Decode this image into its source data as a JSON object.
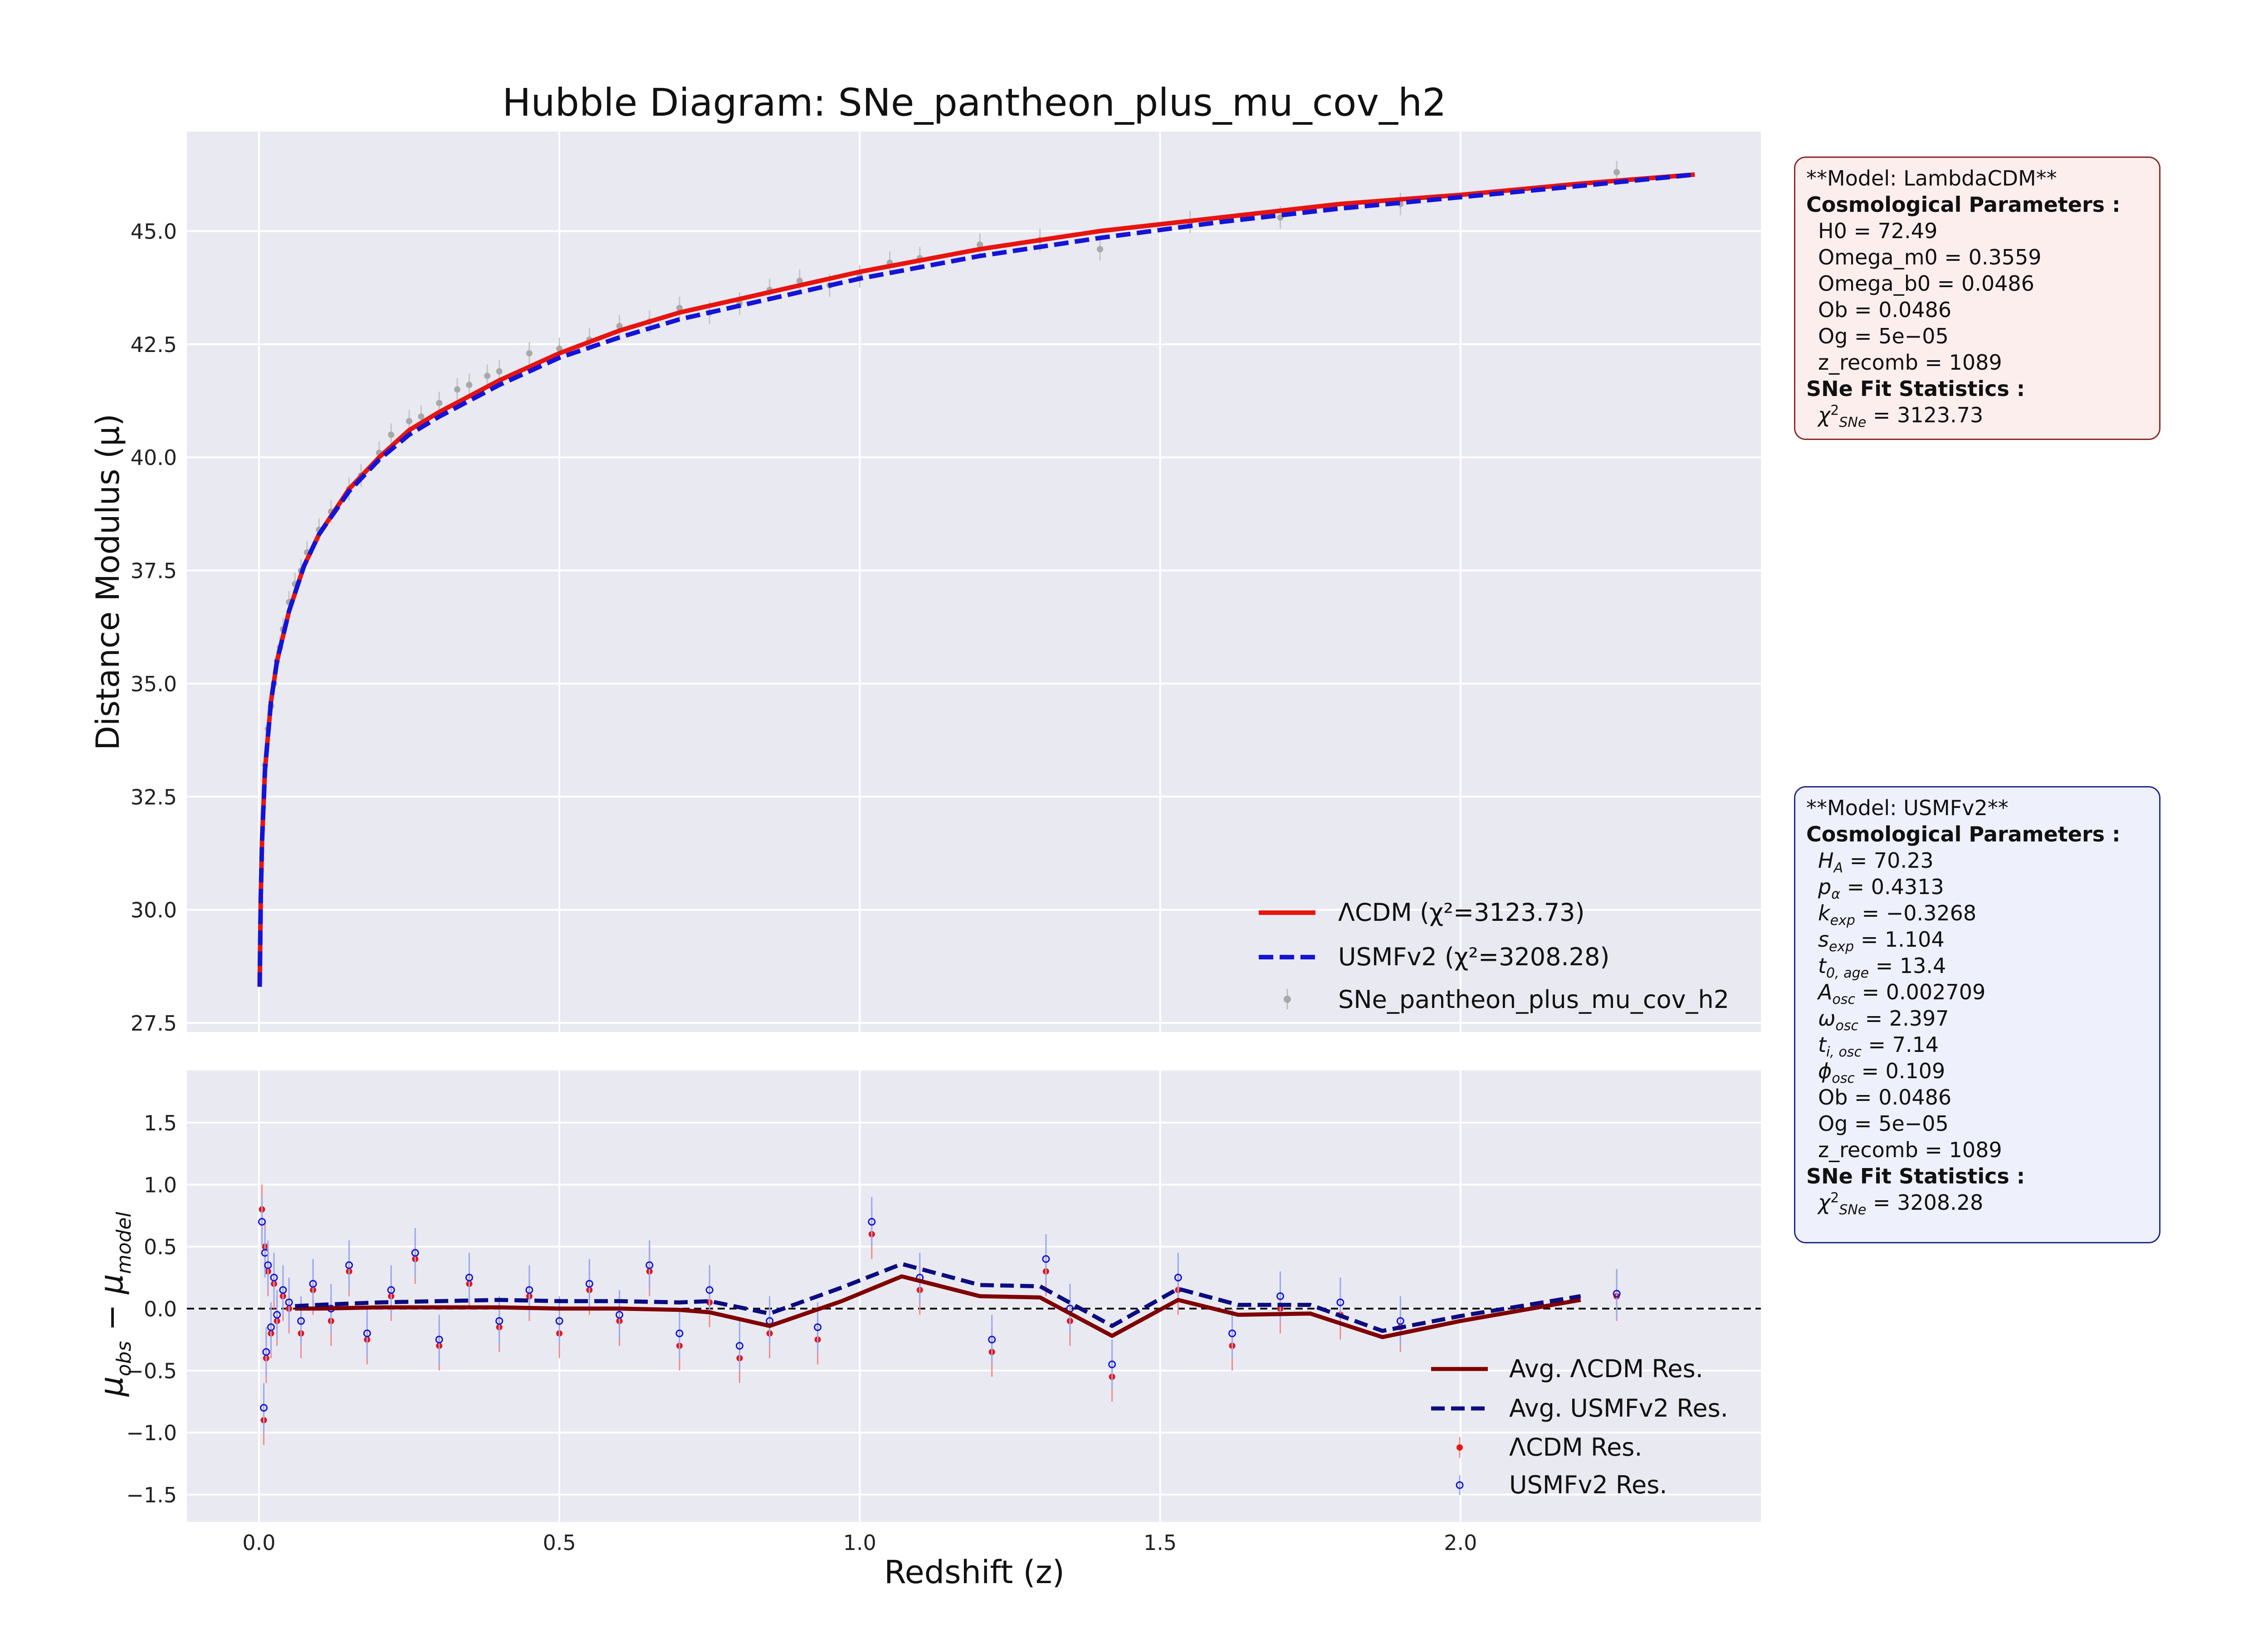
{
  "chart_data": [
    {
      "type": "line",
      "title": "Hubble Diagram: SNe_pantheon_plus_mu_cov_h2",
      "xlabel": "",
      "ylabel": "Distance Modulus (μ)",
      "xlim": [
        -0.12,
        2.5
      ],
      "ylim": [
        27.3,
        47.2
      ],
      "grid": true,
      "legend_position": "lower-right",
      "yticks": [
        27.5,
        30.0,
        32.5,
        35.0,
        37.5,
        40.0,
        42.5,
        45.0
      ],
      "ytick_labels": [
        "27.5",
        "30.0",
        "32.5",
        "35.0",
        "37.5",
        "40.0",
        "42.5",
        "45.0"
      ],
      "series": [
        {
          "name": "ΛCDM (χ²=3123.73)",
          "style": "solid",
          "color": "#e8140f",
          "x": [
            0.0012,
            0.003,
            0.005,
            0.01,
            0.02,
            0.03,
            0.05,
            0.075,
            0.1,
            0.15,
            0.2,
            0.25,
            0.3,
            0.4,
            0.5,
            0.6,
            0.7,
            0.8,
            0.9,
            1.0,
            1.2,
            1.4,
            1.6,
            1.8,
            2.0,
            2.2,
            2.39
          ],
          "y": [
            28.3,
            30.3,
            31.5,
            33.1,
            34.6,
            35.5,
            36.6,
            37.6,
            38.3,
            39.3,
            40.0,
            40.6,
            41.0,
            41.7,
            42.3,
            42.8,
            43.2,
            43.5,
            43.8,
            44.1,
            44.6,
            45.0,
            45.3,
            45.6,
            45.8,
            46.05,
            46.25
          ]
        },
        {
          "name": "USMFv2 (χ²=3208.28)",
          "style": "dashed",
          "color": "#1414d6",
          "x": [
            0.0012,
            0.003,
            0.005,
            0.01,
            0.02,
            0.03,
            0.05,
            0.075,
            0.1,
            0.15,
            0.2,
            0.25,
            0.3,
            0.4,
            0.5,
            0.6,
            0.7,
            0.8,
            0.9,
            1.0,
            1.2,
            1.4,
            1.6,
            1.8,
            2.0,
            2.2,
            2.39
          ],
          "y": [
            28.3,
            30.3,
            31.5,
            33.1,
            34.6,
            35.5,
            36.6,
            37.6,
            38.3,
            39.25,
            39.95,
            40.5,
            40.9,
            41.6,
            42.2,
            42.65,
            43.05,
            43.35,
            43.65,
            43.95,
            44.45,
            44.85,
            45.2,
            45.5,
            45.75,
            46.0,
            46.25
          ]
        }
      ],
      "scatter": {
        "name": "SNe_pantheon_plus_mu_cov_h2",
        "color": "#a8a8a8",
        "x": [
          0.01,
          0.015,
          0.02,
          0.025,
          0.03,
          0.035,
          0.04,
          0.05,
          0.06,
          0.07,
          0.08,
          0.1,
          0.12,
          0.15,
          0.17,
          0.2,
          0.22,
          0.25,
          0.27,
          0.3,
          0.33,
          0.35,
          0.38,
          0.4,
          0.45,
          0.5,
          0.55,
          0.6,
          0.65,
          0.7,
          0.75,
          0.8,
          0.85,
          0.9,
          0.95,
          1.0,
          1.05,
          1.1,
          1.2,
          1.3,
          1.4,
          1.55,
          1.7,
          1.9,
          2.26
        ],
        "y": [
          33.2,
          34.0,
          34.5,
          35.0,
          35.5,
          35.8,
          36.2,
          36.8,
          37.2,
          37.5,
          37.9,
          38.4,
          38.8,
          39.3,
          39.6,
          40.1,
          40.5,
          40.8,
          40.9,
          41.2,
          41.5,
          41.6,
          41.8,
          41.9,
          42.3,
          42.4,
          42.6,
          42.9,
          43.0,
          43.3,
          43.2,
          43.4,
          43.7,
          43.9,
          43.8,
          44.0,
          44.3,
          44.4,
          44.7,
          44.8,
          44.6,
          45.2,
          45.3,
          45.6,
          46.3
        ]
      }
    },
    {
      "type": "line",
      "title": "",
      "xlabel": "Redshift (z)",
      "ylabel": "μobs − μmodel",
      "xlim": [
        -0.12,
        2.5
      ],
      "ylim": [
        -1.72,
        1.92
      ],
      "grid": true,
      "legend_position": "lower-right",
      "zero_line": "dashed",
      "xticks": [
        0.0,
        0.5,
        1.0,
        1.5,
        2.0
      ],
      "xtick_labels": [
        "0.0",
        "0.5",
        "1.0",
        "1.5",
        "2.0"
      ],
      "yticks": [
        -1.5,
        -1.0,
        -0.5,
        0.0,
        0.5,
        1.0,
        1.5
      ],
      "ytick_labels": [
        "−1.5",
        "−1.0",
        "−0.5",
        "0.0",
        "0.5",
        "1.0",
        "1.5"
      ],
      "series": [
        {
          "name": "Avg. ΛCDM Res.",
          "style": "solid",
          "color": "#7f0000",
          "x": [
            0.06,
            0.1,
            0.2,
            0.3,
            0.4,
            0.5,
            0.6,
            0.7,
            0.75,
            0.85,
            0.97,
            1.07,
            1.2,
            1.3,
            1.42,
            1.53,
            1.63,
            1.75,
            1.87,
            2.0,
            2.2
          ],
          "y": [
            0.0,
            0.0,
            0.01,
            0.01,
            0.01,
            0.0,
            0.0,
            -0.01,
            -0.03,
            -0.14,
            0.06,
            0.26,
            0.1,
            0.09,
            -0.22,
            0.07,
            -0.05,
            -0.04,
            -0.23,
            -0.1,
            0.07
          ]
        },
        {
          "name": "Avg. USMFv2 Res.",
          "style": "dashed",
          "color": "#0c0c80",
          "x": [
            0.06,
            0.1,
            0.2,
            0.3,
            0.4,
            0.5,
            0.6,
            0.7,
            0.75,
            0.85,
            0.97,
            1.07,
            1.2,
            1.3,
            1.42,
            1.53,
            1.63,
            1.75,
            1.87,
            2.0,
            2.2
          ],
          "y": [
            0.02,
            0.03,
            0.05,
            0.06,
            0.07,
            0.06,
            0.06,
            0.05,
            0.06,
            -0.04,
            0.17,
            0.36,
            0.19,
            0.18,
            -0.14,
            0.16,
            0.03,
            0.03,
            -0.18,
            -0.06,
            0.1
          ]
        }
      ],
      "scatter": [
        {
          "name": "ΛCDM Res.",
          "color": "#e8140f",
          "x": [
            0.005,
            0.008,
            0.01,
            0.012,
            0.015,
            0.02,
            0.025,
            0.03,
            0.04,
            0.05,
            0.07,
            0.09,
            0.12,
            0.15,
            0.18,
            0.22,
            0.26,
            0.3,
            0.35,
            0.4,
            0.45,
            0.5,
            0.55,
            0.6,
            0.65,
            0.7,
            0.75,
            0.8,
            0.85,
            0.93,
            1.02,
            1.1,
            1.22,
            1.31,
            1.35,
            1.42,
            1.53,
            1.62,
            1.7,
            1.8,
            1.9,
            2.26
          ],
          "y": [
            0.8,
            -0.9,
            0.5,
            -0.4,
            0.3,
            -0.2,
            0.2,
            -0.1,
            0.1,
            0.0,
            -0.2,
            0.15,
            -0.1,
            0.3,
            -0.25,
            0.1,
            0.4,
            -0.3,
            0.2,
            -0.15,
            0.1,
            -0.2,
            0.15,
            -0.1,
            0.3,
            -0.3,
            0.05,
            -0.4,
            -0.2,
            -0.25,
            0.6,
            0.15,
            -0.35,
            0.3,
            -0.1,
            -0.55,
            0.15,
            -0.3,
            0.0,
            -0.05,
            -0.15,
            0.1
          ]
        },
        {
          "name": "USMFv2 Res.",
          "color": "#1414d6",
          "x": [
            0.005,
            0.008,
            0.01,
            0.012,
            0.015,
            0.02,
            0.025,
            0.03,
            0.04,
            0.05,
            0.07,
            0.09,
            0.12,
            0.15,
            0.18,
            0.22,
            0.26,
            0.3,
            0.35,
            0.4,
            0.45,
            0.5,
            0.55,
            0.6,
            0.65,
            0.7,
            0.75,
            0.8,
            0.85,
            0.93,
            1.02,
            1.1,
            1.22,
            1.31,
            1.35,
            1.42,
            1.53,
            1.62,
            1.7,
            1.8,
            1.9,
            2.26
          ],
          "y": [
            0.7,
            -0.8,
            0.45,
            -0.35,
            0.35,
            -0.15,
            0.25,
            -0.05,
            0.15,
            0.05,
            -0.1,
            0.2,
            0.0,
            0.35,
            -0.2,
            0.15,
            0.45,
            -0.25,
            0.25,
            -0.1,
            0.15,
            -0.1,
            0.2,
            -0.05,
            0.35,
            -0.2,
            0.15,
            -0.3,
            -0.1,
            -0.15,
            0.7,
            0.25,
            -0.25,
            0.4,
            0.0,
            -0.45,
            0.25,
            -0.2,
            0.1,
            0.05,
            -0.1,
            0.12
          ]
        }
      ]
    }
  ],
  "info_boxes": {
    "lcdm": {
      "model_label": "**Model: LambdaCDM**",
      "params_header": "Cosmological Parameters :",
      "params": [
        "H0 = 72.49",
        "Omega_m0 = 0.3559",
        "Omega_b0 = 0.0486",
        "Ob = 0.0486",
        "Og = 5e−05",
        "z_recomb = 1089"
      ],
      "stats_header": "SNe Fit Statistics :",
      "chi2_symbol": "χ",
      "chi2_sup": "2",
      "chi2_sub": "SNe",
      "chi2_value": " = 3123.73"
    },
    "usmf": {
      "model_label": "**Model: USMFv2**",
      "params_header": "Cosmological Parameters :",
      "params": [
        {
          "sym": "H",
          "sub": "A",
          "val": " = 70.23"
        },
        {
          "sym": "p",
          "sub": "α",
          "val": " = 0.4313"
        },
        {
          "sym": "k",
          "sub": "exp",
          "val": " = −0.3268"
        },
        {
          "sym": "s",
          "sub": "exp",
          "val": " = 1.104"
        },
        {
          "sym": "t",
          "sub": "0, age",
          "val": " = 13.4"
        },
        {
          "sym": "A",
          "sub": "osc",
          "val": " = 0.002709"
        },
        {
          "sym": "ω",
          "sub": "osc",
          "val": " = 2.397"
        },
        {
          "sym": "t",
          "sub": "i, osc",
          "val": " = 7.14"
        },
        {
          "sym": "ϕ",
          "sub": "osc",
          "val": " = 0.109"
        }
      ],
      "plain_params": [
        "Ob = 0.0486",
        "Og = 5e−05",
        "z_recomb = 1089"
      ],
      "stats_header": "SNe Fit Statistics :",
      "chi2_symbol": "χ",
      "chi2_sup": "2",
      "chi2_sub": "SNe",
      "chi2_value": " = 3208.28"
    }
  },
  "colors": {
    "axes_bg": "#e9e9f1",
    "grid": "#ffffff",
    "lcdm": "#e8140f",
    "usmf": "#1414d6",
    "data_points": "#a8a8a8",
    "avg_lcdm": "#7f0000",
    "avg_usmf": "#0c0c80"
  }
}
